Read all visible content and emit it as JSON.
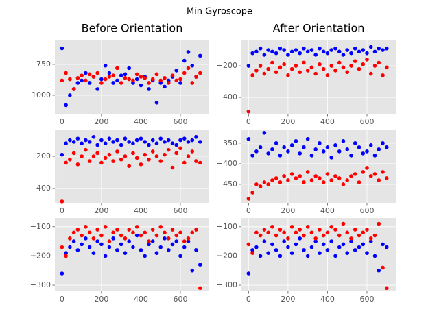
{
  "title": "Min Gyroscope",
  "chart_data": [
    {
      "type": "scatter",
      "title": "Before Orientation",
      "x": [
        0,
        20,
        40,
        60,
        80,
        100,
        120,
        140,
        160,
        180,
        200,
        220,
        240,
        260,
        280,
        300,
        320,
        340,
        360,
        380,
        400,
        420,
        440,
        460,
        480,
        500,
        520,
        540,
        560,
        580,
        600,
        620,
        640,
        660,
        680,
        700
      ],
      "series": [
        {
          "color": "#0000ff",
          "values": [
            -620,
            -1080,
            -1000,
            -950,
            -900,
            -880,
            -820,
            -900,
            -850,
            -950,
            -870,
            -760,
            -820,
            -900,
            -880,
            -840,
            -830,
            -780,
            -900,
            -870,
            -920,
            -850,
            -950,
            -880,
            -1060,
            -900,
            -930,
            -880,
            -850,
            -800,
            -900,
            -720,
            -650,
            -760,
            -850,
            -680
          ]
        },
        {
          "color": "#ff0000",
          "values": [
            -880,
            -820,
            -870,
            -950,
            -860,
            -840,
            -880,
            -830,
            -850,
            -820,
            -900,
            -870,
            -850,
            -840,
            -780,
            -900,
            -860,
            -870,
            -880,
            -830,
            -850,
            -860,
            -900,
            -870,
            -830,
            -880,
            -860,
            -900,
            -840,
            -880,
            -870,
            -820,
            -780,
            -900,
            -850,
            -820
          ]
        }
      ],
      "xlim": [
        -36,
        746
      ],
      "xticks": [
        0,
        200,
        400,
        600
      ],
      "ylim": [
        -1150,
        -556
      ],
      "yticks": [
        {
          "value": -1000,
          "label": "−1000"
        },
        {
          "value": -750,
          "label": "−750"
        }
      ],
      "grid": true
    },
    {
      "type": "scatter",
      "title": "After Orientation",
      "x": [
        0,
        20,
        40,
        60,
        80,
        100,
        120,
        140,
        160,
        180,
        200,
        220,
        240,
        260,
        280,
        300,
        320,
        340,
        360,
        380,
        400,
        420,
        440,
        460,
        480,
        500,
        520,
        540,
        560,
        580,
        600,
        620,
        640,
        660,
        680,
        700
      ],
      "series": [
        {
          "color": "#0000ff",
          "values": [
            -200,
            -120,
            -110,
            -90,
            -130,
            -100,
            -110,
            -120,
            -90,
            -100,
            -130,
            -110,
            -100,
            -120,
            -90,
            -110,
            -100,
            -130,
            -90,
            -110,
            -120,
            -100,
            -90,
            -110,
            -130,
            -100,
            -120,
            -90,
            -110,
            -100,
            -120,
            -80,
            -110,
            -90,
            -100,
            -90
          ]
        },
        {
          "color": "#ff0000",
          "values": [
            -490,
            -260,
            -230,
            -200,
            -250,
            -220,
            -180,
            -240,
            -210,
            -190,
            -260,
            -220,
            -200,
            -240,
            -180,
            -230,
            -210,
            -250,
            -190,
            -220,
            -260,
            -200,
            -230,
            -180,
            -210,
            -240,
            -200,
            -170,
            -220,
            -190,
            -160,
            -250,
            -200,
            -180,
            -260,
            -210
          ]
        }
      ],
      "xlim": [
        -36,
        746
      ],
      "xticks": [
        0,
        200,
        400,
        600
      ],
      "ylim": [
        -504,
        -39
      ],
      "yticks": [
        {
          "value": -400,
          "label": "−400"
        },
        {
          "value": -200,
          "label": "−200"
        }
      ],
      "grid": true
    },
    {
      "type": "scatter",
      "x": [
        0,
        20,
        40,
        60,
        80,
        100,
        120,
        140,
        160,
        180,
        200,
        220,
        240,
        260,
        280,
        300,
        320,
        340,
        360,
        380,
        400,
        420,
        440,
        460,
        480,
        500,
        520,
        540,
        560,
        580,
        600,
        620,
        640,
        660,
        680,
        700
      ],
      "series": [
        {
          "color": "#0000ff",
          "values": [
            -190,
            -120,
            -100,
            -110,
            -90,
            -120,
            -100,
            -110,
            -80,
            -130,
            -100,
            -120,
            -90,
            -110,
            -100,
            -130,
            -90,
            -110,
            -120,
            -100,
            -90,
            -110,
            -130,
            -100,
            -120,
            -90,
            -110,
            -100,
            -120,
            -130,
            -100,
            -90,
            -110,
            -100,
            -80,
            -110
          ]
        },
        {
          "color": "#ff0000",
          "values": [
            -480,
            -240,
            -220,
            -180,
            -250,
            -200,
            -160,
            -230,
            -200,
            -180,
            -240,
            -210,
            -190,
            -230,
            -170,
            -220,
            -200,
            -260,
            -180,
            -210,
            -250,
            -190,
            -220,
            -170,
            -200,
            -230,
            -190,
            -160,
            -270,
            -180,
            -150,
            -240,
            -200,
            -170,
            -230,
            -240
          ]
        }
      ],
      "xlim": [
        -36,
        746
      ],
      "xticks": [
        0,
        200,
        400,
        600
      ],
      "ylim": [
        -489,
        -34
      ],
      "yticks": [
        {
          "value": -400,
          "label": "−400"
        },
        {
          "value": -200,
          "label": "−200"
        }
      ],
      "grid": true
    },
    {
      "type": "scatter",
      "x": [
        0,
        20,
        40,
        60,
        80,
        100,
        120,
        140,
        160,
        180,
        200,
        220,
        240,
        260,
        280,
        300,
        320,
        340,
        360,
        380,
        400,
        420,
        440,
        460,
        480,
        500,
        520,
        540,
        560,
        580,
        600,
        620,
        640,
        660,
        680,
        700
      ],
      "series": [
        {
          "color": "#0000ff",
          "values": [
            -340,
            -380,
            -370,
            -360,
            -325,
            -375,
            -365,
            -350,
            -380,
            -360,
            -370,
            -355,
            -345,
            -375,
            -360,
            -340,
            -380,
            -365,
            -350,
            -370,
            -360,
            -385,
            -355,
            -370,
            -345,
            -365,
            -380,
            -350,
            -360,
            -375,
            -370,
            -355,
            -380,
            -365,
            -350,
            -360
          ]
        },
        {
          "color": "#ff0000",
          "values": [
            -485,
            -470,
            -450,
            -455,
            -445,
            -450,
            -440,
            -435,
            -445,
            -430,
            -440,
            -425,
            -435,
            -430,
            -445,
            -420,
            -440,
            -430,
            -435,
            -445,
            -425,
            -440,
            -430,
            -435,
            -450,
            -440,
            -430,
            -425,
            -445,
            -420,
            -410,
            -430,
            -425,
            -440,
            -420,
            -435
          ]
        }
      ],
      "xlim": [
        -36,
        746
      ],
      "xticks": [
        0,
        200,
        400,
        600
      ],
      "ylim": [
        -495,
        -317
      ],
      "yticks": [
        {
          "value": -450,
          "label": "−450"
        },
        {
          "value": -400,
          "label": "−400"
        },
        {
          "value": -350,
          "label": "−350"
        }
      ],
      "grid": true
    },
    {
      "type": "scatter",
      "x": [
        0,
        20,
        40,
        60,
        80,
        100,
        120,
        140,
        160,
        180,
        200,
        220,
        240,
        260,
        280,
        300,
        320,
        340,
        360,
        380,
        400,
        420,
        440,
        460,
        480,
        500,
        520,
        540,
        560,
        580,
        600,
        620,
        640,
        660,
        680,
        700
      ],
      "series": [
        {
          "color": "#0000ff",
          "values": [
            -260,
            -190,
            -170,
            -150,
            -180,
            -160,
            -140,
            -170,
            -190,
            -150,
            -160,
            -200,
            -170,
            -140,
            -180,
            -160,
            -190,
            -150,
            -170,
            -130,
            -180,
            -200,
            -160,
            -150,
            -190,
            -170,
            -140,
            -180,
            -160,
            -150,
            -200,
            -170,
            -150,
            -250,
            -180,
            -230
          ]
        },
        {
          "color": "#ff0000",
          "values": [
            -170,
            -200,
            -140,
            -120,
            -110,
            -130,
            -100,
            -120,
            -140,
            -110,
            -130,
            -100,
            -150,
            -120,
            -110,
            -130,
            -140,
            -110,
            -120,
            -100,
            -130,
            -120,
            -150,
            -110,
            -130,
            -100,
            -120,
            -140,
            -110,
            -130,
            -120,
            -150,
            -140,
            -120,
            -110,
            -310
          ]
        }
      ],
      "xlim": [
        -36,
        746
      ],
      "xticks": [
        0,
        200,
        400,
        600
      ],
      "ylim": [
        -321,
        -70
      ],
      "yticks": [
        {
          "value": -300,
          "label": "−300"
        },
        {
          "value": -200,
          "label": "−200"
        },
        {
          "value": -100,
          "label": "−100"
        }
      ],
      "grid": true
    },
    {
      "type": "scatter",
      "x": [
        0,
        20,
        40,
        60,
        80,
        100,
        120,
        140,
        160,
        180,
        200,
        220,
        240,
        260,
        280,
        300,
        320,
        340,
        360,
        380,
        400,
        420,
        440,
        460,
        480,
        500,
        520,
        540,
        560,
        580,
        600,
        620,
        640,
        660,
        680,
        700
      ],
      "series": [
        {
          "color": "#0000ff",
          "values": [
            -260,
            -180,
            -170,
            -200,
            -150,
            -190,
            -160,
            -180,
            -200,
            -150,
            -170,
            -190,
            -160,
            -140,
            -180,
            -200,
            -170,
            -150,
            -190,
            -160,
            -180,
            -150,
            -200,
            -170,
            -160,
            -190,
            -150,
            -180,
            -170,
            -160,
            -190,
            -150,
            -200,
            -250,
            -160,
            -170
          ]
        },
        {
          "color": "#ff0000",
          "values": [
            -160,
            -190,
            -120,
            -130,
            -110,
            -120,
            -100,
            -130,
            -110,
            -120,
            -140,
            -100,
            -120,
            -110,
            -130,
            -100,
            -120,
            -140,
            -110,
            -130,
            -120,
            -100,
            -110,
            -130,
            -90,
            -120,
            -140,
            -110,
            -130,
            -120,
            -110,
            -140,
            -130,
            -90,
            -240,
            -310
          ]
        }
      ],
      "xlim": [
        -36,
        746
      ],
      "xticks": [
        0,
        200,
        400,
        600
      ],
      "ylim": [
        -321,
        -70
      ],
      "yticks": [
        {
          "value": -300,
          "label": "−300"
        },
        {
          "value": -200,
          "label": "−200"
        },
        {
          "value": -100,
          "label": "−100"
        }
      ],
      "grid": true
    }
  ]
}
